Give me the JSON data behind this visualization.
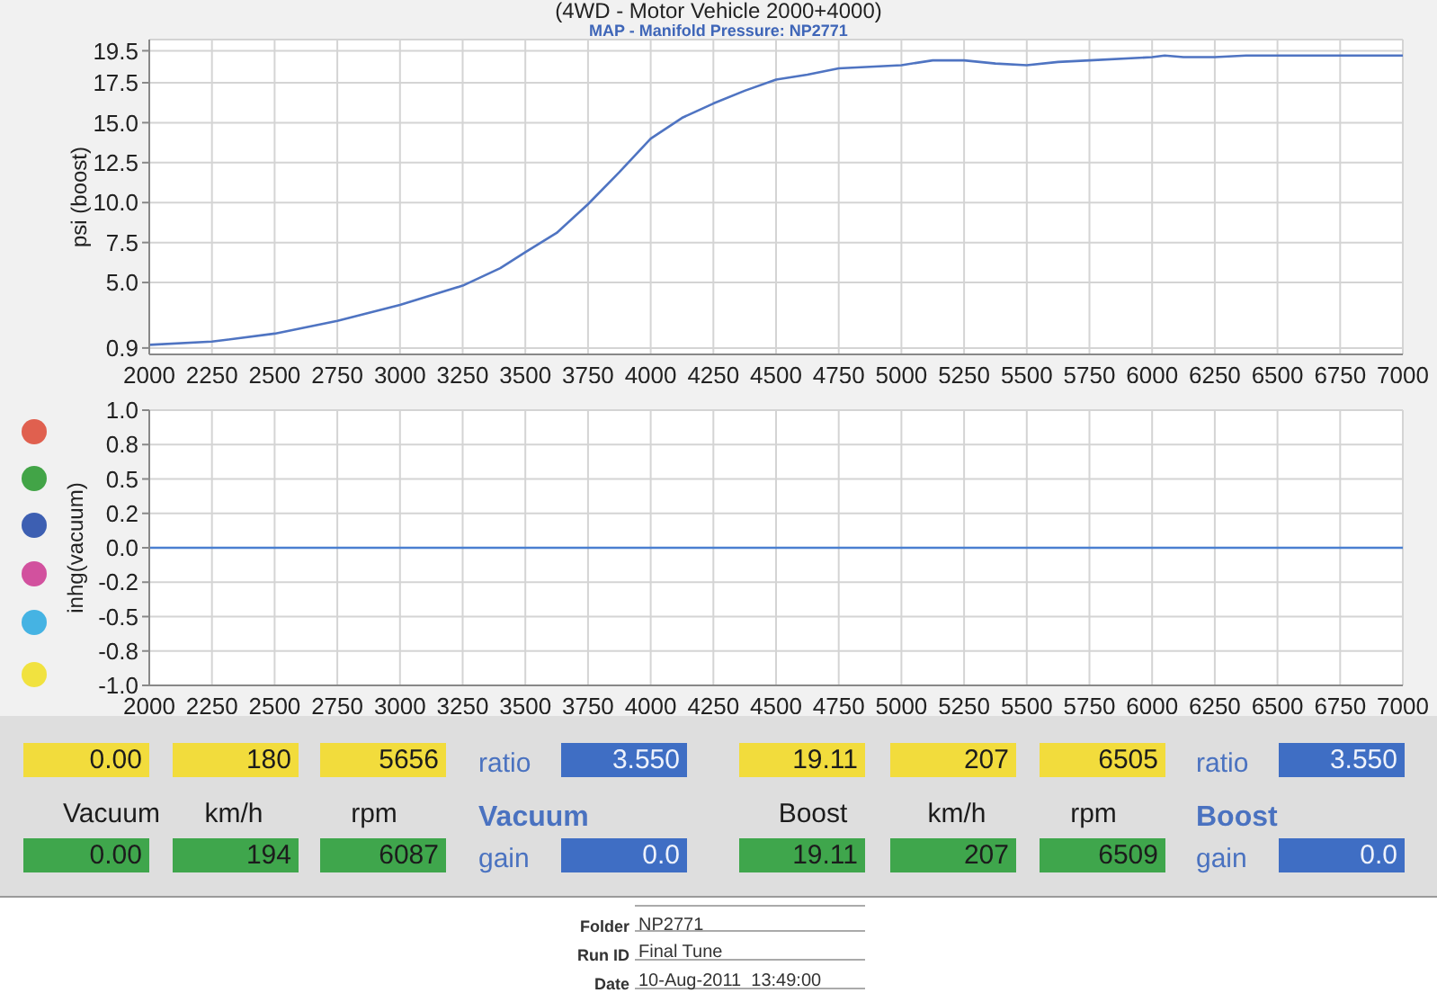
{
  "chart_data": [
    {
      "type": "line",
      "title": "(4WD - Motor Vehicle 2000+4000)",
      "subtitle": "MAP - Manifold Pressure: NP2771",
      "ylabel": "psi (boost)",
      "x": [
        2000,
        2250,
        2500,
        2750,
        3000,
        3250,
        3400,
        3500,
        3625,
        3750,
        3875,
        4000,
        4125,
        4250,
        4375,
        4500,
        4625,
        4750,
        4875,
        5000,
        5125,
        5250,
        5375,
        5500,
        5625,
        5750,
        6000,
        6050,
        6125,
        6250,
        6375,
        6500,
        6650,
        6750,
        7000
      ],
      "series": [
        {
          "color": "#4f74c2",
          "values": [
            1.1,
            1.3,
            1.8,
            2.6,
            3.6,
            4.8,
            5.9,
            6.9,
            8.1,
            9.9,
            11.9,
            14.0,
            15.3,
            16.2,
            17.0,
            17.7,
            18.0,
            18.4,
            18.5,
            18.6,
            18.9,
            18.9,
            18.7,
            18.6,
            18.8,
            18.9,
            19.1,
            19.2,
            19.1,
            19.1,
            19.2,
            19.2,
            19.2,
            19.2,
            19.2
          ]
        }
      ],
      "xlim": [
        2000,
        7000
      ],
      "ylim": [
        0.5,
        20.2
      ],
      "xticks": [
        2000,
        2250,
        2500,
        2750,
        3000,
        3250,
        3500,
        3750,
        4000,
        4250,
        4500,
        4750,
        5000,
        5250,
        5500,
        5750,
        6000,
        6250,
        6500,
        6750,
        7000
      ],
      "yticks": [
        0.9,
        {
          "value": 5,
          "label": "5.0"
        },
        7.5,
        {
          "value": 10,
          "label": "10.0"
        },
        12.5,
        {
          "value": 15,
          "label": "15.0"
        },
        17.5,
        19.5
      ],
      "grid": true
    },
    {
      "type": "line",
      "ylabel": "inhg(vacuum)",
      "x": [
        2000,
        7000
      ],
      "series": [
        {
          "color": "#4a7fd0",
          "values": [
            0,
            0
          ]
        }
      ],
      "xlim": [
        2000,
        7000
      ],
      "ylim": [
        -1,
        1
      ],
      "xticks": [
        2000,
        2250,
        2500,
        2750,
        3000,
        3250,
        3500,
        3750,
        4000,
        4250,
        4500,
        4750,
        5000,
        5250,
        5500,
        5750,
        6000,
        6250,
        6500,
        6750,
        7000
      ],
      "yticks": [
        {
          "value": 1,
          "label": "1.0"
        },
        {
          "value": 0.75,
          "label": "0.8"
        },
        {
          "value": 0.5,
          "label": "0.5"
        },
        {
          "value": 0.25,
          "label": "0.2"
        },
        {
          "value": 0,
          "label": "0.0"
        },
        {
          "value": -0.25,
          "label": "-0.2"
        },
        {
          "value": -0.5,
          "label": "-0.5"
        },
        {
          "value": -0.75,
          "label": "-0.8"
        },
        {
          "value": -1,
          "label": "-1.0"
        }
      ],
      "grid": true
    },
    {
      "type": "other",
      "annotations": [
        "0.00",
        "180",
        "5656",
        "ratio",
        "3.550",
        "19.11",
        "207",
        "6505",
        "ratio",
        "3.550",
        "Vacuum",
        "km/h",
        "rpm",
        "Vacuum",
        "Boost",
        "km/h",
        "rpm",
        "Boost",
        "0.00",
        "194",
        "6087",
        "gain",
        "0.0",
        "19.11",
        "207",
        "6509",
        "gain",
        "0.0"
      ]
    },
    {
      "type": "other",
      "annotations": [
        "Folder",
        "NP2771",
        "Run ID",
        "Final Tune",
        "Date",
        "10-Aug-2011  13:49:00"
      ]
    }
  ]
}
